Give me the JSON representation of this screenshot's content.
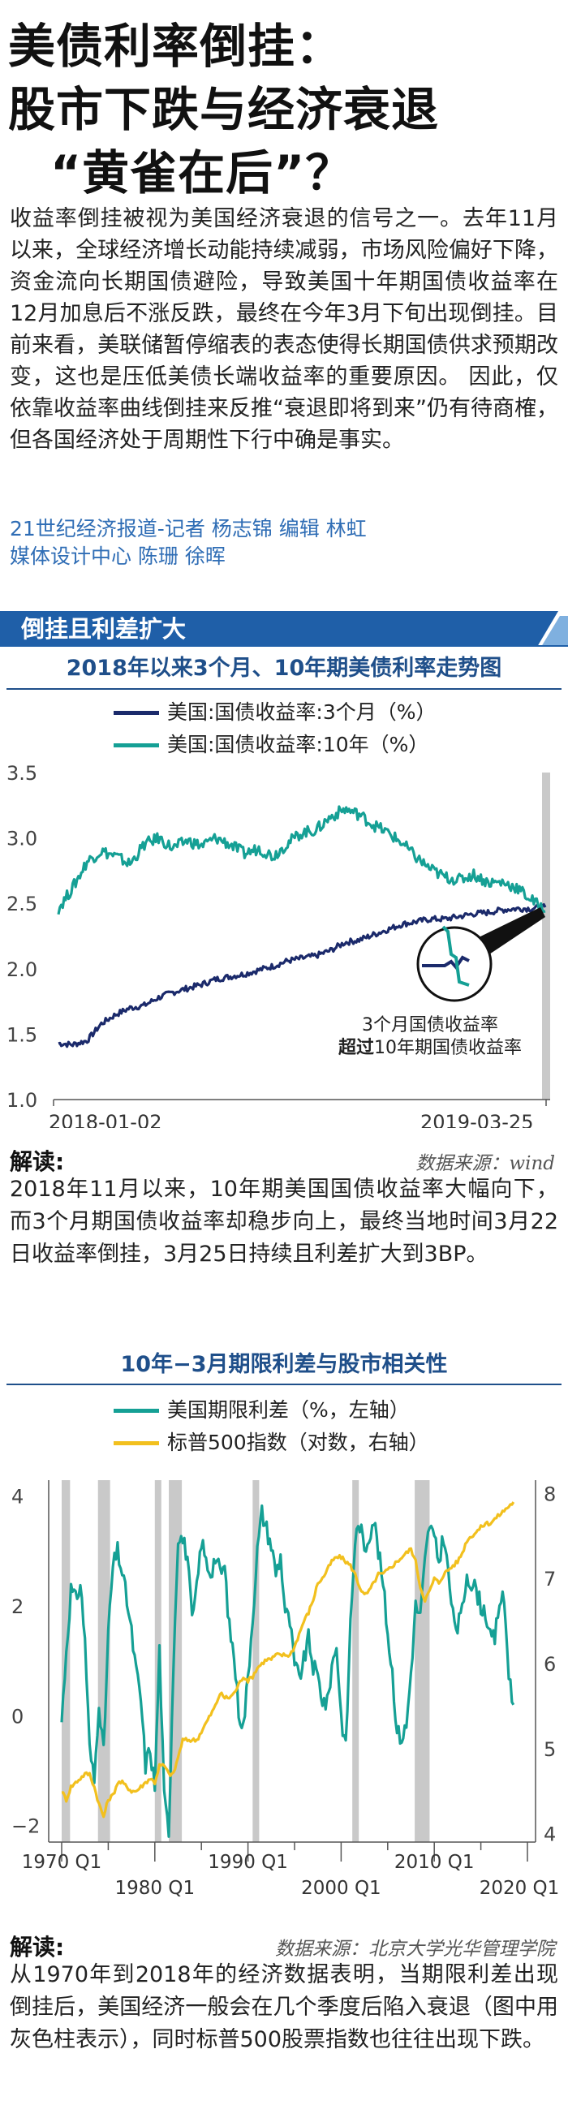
{
  "headline": {
    "line1": "美债利率倒挂：",
    "line2": "股市下跌与经济衰退",
    "line3": "“黄雀在后”？"
  },
  "intro": "收益率倒挂被视为美国经济衰退的信号之一。去年11月以来，全球经济增长动能持续减弱，市场风险偏好下降，资金流向长期国债避险，导致美国十年期国债收益率在12月加息后不涨反跌，最终在今年3月下旬出现倒挂。目前来看，美联储暂停缩表的表态使得长期国债供求预期改变，这也是压低美债长端收益率的重要原因。  因此，仅依靠收益率曲线倒挂来反推“衰退即将到来”仍有待商榷，但各国经济处于周期性下行中确是事实。",
  "byline": {
    "line1": "21世纪经济报道-记者 杨志锦  编辑 林虹",
    "line2": "媒体设计中心 陈珊 徐晖"
  },
  "banner": {
    "title": "倒挂且利差扩大",
    "color": "#1f5fa8",
    "accent": "#7fb0df"
  },
  "colors": {
    "navy": "#1b2a6b",
    "teal": "#15a095",
    "gold": "#f2c01e",
    "recession": "#c9c9c9",
    "title_blue": "#1f4f8a"
  },
  "chart1": {
    "title": "2018年以来3个月、10年期美债利率走势图",
    "annotation_line1": "3个月国债收益率",
    "annotation_bold": "超过",
    "annotation_rest": "10年期国债收益率",
    "explain_label": "解读:",
    "source": "数据来源：wind",
    "explain_text": "2018年11月以来，10年期美国国债收益率大幅向下，而3个月期国债收益率却稳步向上，最终当地时间3月22日收益率倒挂，3月25日持续且利差扩大到3BP。"
  },
  "chart2": {
    "title": "10年−3月期限利差与股市相关性",
    "explain_label": "解读:",
    "source": "数据来源：北京大学光华管理学院",
    "explain_text": "从1970年到2018年的经济数据表明，当期限利差出现倒挂后，美国经济一般会在几个季度后陷入衰退（图中用灰色柱表示），同时标普500股票指数也往往出现下跌。"
  },
  "chart_data": [
    {
      "type": "line",
      "title": "2018年以来3个月、10年期美债利率走势图",
      "x_ticks": [
        "2018-01-02",
        "2019-03-25"
      ],
      "ylim": [
        1.0,
        3.5
      ],
      "y_ticks": [
        "1.0",
        "1.5",
        "2.0",
        "2.5",
        "3.0",
        "3.5"
      ],
      "grid": false,
      "legend": "top-left",
      "series": [
        {
          "name": "美国:国债收益率:3个月（%）",
          "color": "#1b2a6b",
          "values": [
            1.43,
            1.42,
            1.45,
            1.58,
            1.65,
            1.7,
            1.72,
            1.78,
            1.82,
            1.85,
            1.88,
            1.92,
            1.94,
            1.96,
            1.99,
            2.02,
            2.06,
            2.08,
            2.1,
            2.14,
            2.2,
            2.22,
            2.26,
            2.3,
            2.34,
            2.36,
            2.38,
            2.38,
            2.4,
            2.42,
            2.43,
            2.45,
            2.46,
            2.46,
            2.47
          ]
        },
        {
          "name": "美国:国债收益率:10年（%）",
          "color": "#15a095",
          "values": [
            2.46,
            2.62,
            2.82,
            2.9,
            2.86,
            2.8,
            2.95,
            3.0,
            2.92,
            2.98,
            2.94,
            3.0,
            2.95,
            2.88,
            2.92,
            2.86,
            2.96,
            3.04,
            3.06,
            3.16,
            3.22,
            3.18,
            3.1,
            3.04,
            2.96,
            2.85,
            2.76,
            2.7,
            2.68,
            2.72,
            2.66,
            2.66,
            2.62,
            2.53,
            2.44
          ]
        }
      ],
      "highlight": "2019-03-25"
    },
    {
      "type": "line",
      "title": "10年−3月期限利差与股市相关性",
      "x_ticks_top": [
        "1970 Q1",
        "1990 Q1",
        "2010 Q1"
      ],
      "x_ticks_bottom": [
        "1980 Q1",
        "2000 Q1",
        "2020 Q1"
      ],
      "xlim": [
        1970,
        2020
      ],
      "y_left_ticks": [
        "−2",
        "0",
        "2",
        "4"
      ],
      "ylim_left": [
        -2.3,
        4.2
      ],
      "y_right_ticks": [
        "4",
        "5",
        "6",
        "7",
        "8"
      ],
      "ylim_right": [
        3.9,
        8.1
      ],
      "legend": "top-left",
      "recessions": [
        [
          1970.0,
          1970.9
        ],
        [
          1973.9,
          1975.2
        ],
        [
          1980.0,
          1980.6
        ],
        [
          1981.5,
          1982.9
        ],
        [
          1990.5,
          1991.2
        ],
        [
          2001.2,
          2001.9
        ],
        [
          2007.9,
          2009.5
        ]
      ],
      "series": [
        {
          "name": "美国期限利差（%，左轴）",
          "axis": "left",
          "color": "#15a095",
          "x": [
            1970,
            1970.5,
            1971,
            1971.5,
            1972,
            1972.5,
            1973,
            1973.5,
            1974,
            1974.5,
            1975,
            1975.5,
            1976,
            1976.5,
            1977,
            1977.5,
            1978,
            1978.5,
            1979,
            1979.5,
            1980,
            1980.5,
            1981,
            1981.5,
            1982,
            1982.5,
            1983,
            1983.5,
            1984,
            1984.5,
            1985,
            1985.5,
            1986,
            1986.5,
            1987,
            1987.5,
            1988,
            1988.5,
            1989,
            1989.5,
            1990,
            1990.5,
            1991,
            1991.5,
            1992,
            1992.5,
            1993,
            1993.5,
            1994,
            1994.5,
            1995,
            1995.5,
            1996,
            1996.5,
            1997,
            1997.5,
            1998,
            1998.5,
            1999,
            1999.5,
            2000,
            2000.5,
            2001,
            2001.5,
            2002,
            2002.5,
            2003,
            2003.5,
            2004,
            2004.5,
            2005,
            2005.5,
            2006,
            2006.5,
            2007,
            2007.5,
            2008,
            2008.5,
            2009,
            2009.5,
            2010,
            2010.5,
            2011,
            2011.5,
            2012,
            2012.5,
            2013,
            2013.5,
            2014,
            2014.5,
            2015,
            2015.5,
            2016,
            2016.5,
            2017,
            2017.5,
            2018,
            2018.5
          ],
          "values": [
            -0.1,
            1.2,
            2.3,
            2.1,
            2.4,
            1.4,
            -0.6,
            -1.2,
            0.3,
            -0.7,
            1.5,
            2.7,
            3.0,
            2.6,
            2.1,
            1.5,
            0.8,
            0.3,
            -0.9,
            -0.6,
            -1.3,
            1.2,
            -1.5,
            -2.1,
            1.0,
            3.3,
            3.2,
            2.9,
            1.7,
            2.3,
            3.2,
            2.8,
            2.6,
            2.9,
            2.6,
            2.7,
            1.6,
            1.1,
            0.1,
            -0.2,
            0.7,
            1.8,
            3.0,
            3.7,
            3.4,
            3.1,
            2.6,
            2.9,
            1.9,
            1.7,
            0.9,
            0.7,
            1.0,
            1.4,
            0.9,
            0.7,
            0.3,
            0.2,
            0.9,
            1.3,
            0.0,
            -0.6,
            1.7,
            3.2,
            3.5,
            3.0,
            3.3,
            3.6,
            3.0,
            2.4,
            1.5,
            0.8,
            -0.3,
            -0.4,
            -0.2,
            0.8,
            2.0,
            1.8,
            2.8,
            3.5,
            3.2,
            2.8,
            3.3,
            2.6,
            1.8,
            1.6,
            1.9,
            2.6,
            2.4,
            2.3,
            2.0,
            1.9,
            1.4,
            1.4,
            2.1,
            2.1,
            0.8,
            0.2
          ]
        },
        {
          "name": "标普500指数（对数，右轴）",
          "axis": "right",
          "color": "#f2c01e",
          "x": [
            1970,
            1970.5,
            1971,
            1971.5,
            1972,
            1972.5,
            1973,
            1973.5,
            1974,
            1974.5,
            1975,
            1975.5,
            1976,
            1976.5,
            1977,
            1977.5,
            1978,
            1978.5,
            1979,
            1979.5,
            1980,
            1980.5,
            1981,
            1981.5,
            1982,
            1982.5,
            1983,
            1983.5,
            1984,
            1984.5,
            1985,
            1985.5,
            1986,
            1986.5,
            1987,
            1987.5,
            1988,
            1988.5,
            1989,
            1989.5,
            1990,
            1990.5,
            1991,
            1991.5,
            1992,
            1992.5,
            1993,
            1993.5,
            1994,
            1994.5,
            1995,
            1995.5,
            1996,
            1996.5,
            1997,
            1997.5,
            1998,
            1998.5,
            1999,
            1999.5,
            2000,
            2000.5,
            2001,
            2001.5,
            2002,
            2002.5,
            2003,
            2003.5,
            2004,
            2004.5,
            2005,
            2005.5,
            2006,
            2006.5,
            2007,
            2007.5,
            2008,
            2008.5,
            2009,
            2009.5,
            2010,
            2010.5,
            2011,
            2011.5,
            2012,
            2012.5,
            2013,
            2013.5,
            2014,
            2014.5,
            2015,
            2015.5,
            2016,
            2016.5,
            2017,
            2017.5,
            2018,
            2018.5
          ],
          "values": [
            4.5,
            4.4,
            4.55,
            4.6,
            4.65,
            4.7,
            4.7,
            4.55,
            4.35,
            4.2,
            4.4,
            4.45,
            4.6,
            4.6,
            4.55,
            4.5,
            4.5,
            4.55,
            4.6,
            4.65,
            4.6,
            4.8,
            4.8,
            4.7,
            4.7,
            4.9,
            5.1,
            5.1,
            5.1,
            5.1,
            5.2,
            5.3,
            5.4,
            5.5,
            5.65,
            5.6,
            5.6,
            5.65,
            5.75,
            5.85,
            5.8,
            5.85,
            5.95,
            6.0,
            6.05,
            6.05,
            6.1,
            6.1,
            6.1,
            6.1,
            6.2,
            6.35,
            6.5,
            6.6,
            6.75,
            6.95,
            7.0,
            7.1,
            7.2,
            7.25,
            7.25,
            7.2,
            7.15,
            7.05,
            6.9,
            6.8,
            6.85,
            6.95,
            7.05,
            7.05,
            7.1,
            7.15,
            7.2,
            7.25,
            7.3,
            7.35,
            7.2,
            6.9,
            6.75,
            6.85,
            7.0,
            6.95,
            7.05,
            7.1,
            7.15,
            7.2,
            7.3,
            7.45,
            7.5,
            7.55,
            7.6,
            7.65,
            7.65,
            7.7,
            7.75,
            7.8,
            7.85,
            7.9
          ]
        }
      ]
    }
  ]
}
